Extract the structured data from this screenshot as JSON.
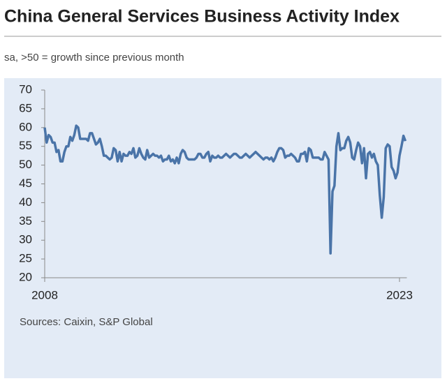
{
  "chart_data": {
    "type": "line",
    "title": "China General Services Business Activity Index",
    "subtitle": "sa, >50 = growth since previous month",
    "source": "Sources: Caixin, S&P Global",
    "categories": [
      "2008",
      null,
      null,
      null,
      null,
      null,
      null,
      null,
      null,
      null,
      null,
      null,
      null,
      null,
      null,
      null,
      null,
      null,
      null,
      null,
      null,
      null,
      null,
      null,
      null,
      null,
      null,
      null,
      null,
      null,
      null,
      null,
      null,
      null,
      null,
      null,
      null,
      null,
      null,
      null,
      null,
      null,
      null,
      null,
      null,
      null,
      null,
      null,
      null,
      null,
      null,
      null,
      null,
      null,
      null,
      null,
      null,
      null,
      null,
      null,
      null,
      null,
      null,
      null,
      null,
      null,
      null,
      null,
      null,
      null,
      null,
      null,
      null,
      null,
      null,
      null,
      null,
      null,
      null,
      null,
      null,
      null,
      null,
      null,
      null,
      null,
      null,
      null,
      null,
      null,
      null,
      null,
      null,
      null,
      null,
      null,
      null,
      null,
      null,
      null,
      null,
      null,
      null,
      null,
      null,
      null,
      null,
      null,
      null,
      null,
      null,
      null,
      null,
      null,
      null,
      null,
      null,
      null,
      null,
      null,
      null,
      null,
      null,
      null,
      null,
      null,
      null,
      null,
      null,
      null,
      null,
      null,
      null,
      null,
      null,
      null,
      null,
      null,
      null,
      null,
      null,
      null,
      null,
      null,
      null,
      null,
      null,
      null,
      null,
      null,
      null,
      null,
      null,
      null,
      null,
      null,
      null,
      null,
      null,
      null,
      null,
      null,
      null,
      null,
      null,
      null,
      null,
      null,
      null,
      null,
      null,
      null,
      null,
      null,
      null,
      null,
      null,
      null,
      null,
      null,
      "2023",
      null,
      null,
      null
    ],
    "series": [
      {
        "name": "Services Business Activity Index",
        "color": "#4a74a8",
        "values": [
          60,
          56,
          58,
          57.5,
          56,
          56,
          53.5,
          54,
          51,
          51,
          53.5,
          55,
          55,
          57.5,
          56.5,
          58,
          60.5,
          60,
          57,
          57,
          57,
          57,
          56.5,
          58.5,
          58.5,
          57,
          55.5,
          56,
          57,
          55,
          52.5,
          52.5,
          52,
          51.5,
          52,
          54.5,
          54,
          51,
          53.5,
          51,
          53,
          52.5,
          52.5,
          53.5,
          53,
          54.5,
          52,
          52.5,
          54.5,
          53,
          52,
          51.5,
          54,
          52,
          52.5,
          53,
          52.5,
          52.5,
          52,
          52.5,
          51,
          51.5,
          51.5,
          52.5,
          51,
          51.5,
          50.5,
          52,
          50.5,
          53,
          54,
          53.5,
          52,
          51.5,
          51.5,
          51.5,
          51.5,
          52,
          53,
          53,
          52,
          52,
          53,
          53.5,
          51,
          52.5,
          52,
          52,
          52.5,
          52,
          52,
          52.5,
          53,
          52.5,
          52,
          52.5,
          53,
          53,
          52.5,
          52,
          52,
          52.5,
          53,
          52.5,
          52,
          52.5,
          53,
          53.5,
          53,
          52.5,
          52,
          51.5,
          52,
          52,
          51.5,
          52,
          51,
          52,
          53.5,
          54.5,
          54.5,
          54,
          52,
          52.5,
          52.5,
          53,
          52.5,
          52,
          51,
          51,
          53,
          53,
          53.5,
          51,
          54.5,
          54,
          52,
          52,
          52,
          52,
          51.5,
          51.5,
          53.5,
          52.5,
          51.5,
          26.5,
          43,
          44.5,
          55,
          58.5,
          54,
          54.5,
          54.5,
          56.5,
          57.5,
          56,
          52,
          51.5,
          54,
          56,
          55,
          50.5,
          54.5,
          46.5,
          53,
          53.5,
          52,
          53,
          51,
          50,
          42,
          36,
          41.5,
          54.5,
          55.5,
          55,
          49.5,
          48.5,
          46.5,
          48,
          52.5,
          55,
          57.8,
          56.4
        ]
      }
    ],
    "ylim": [
      20,
      70
    ],
    "yticks": [
      20,
      25,
      30,
      35,
      40,
      45,
      50,
      55,
      60,
      65,
      70
    ]
  }
}
